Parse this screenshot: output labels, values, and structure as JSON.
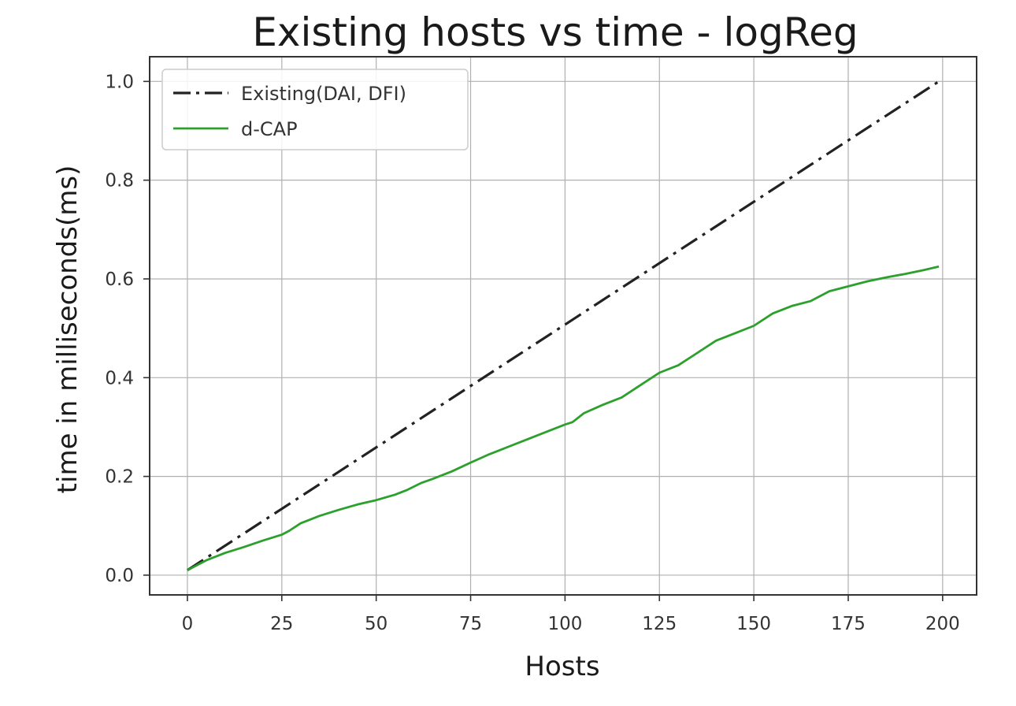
{
  "chart_data": {
    "type": "line",
    "title": "Existing hosts vs time - logReg",
    "xlabel": "Hosts",
    "ylabel": "time in milliseconds(ms)",
    "xlim": [
      -10,
      209
    ],
    "ylim": [
      -0.04,
      1.05
    ],
    "xticks": [
      0,
      25,
      50,
      75,
      100,
      125,
      150,
      175,
      200
    ],
    "yticks": [
      0.0,
      0.2,
      0.4,
      0.6,
      0.8,
      1.0
    ],
    "ytick_labels": [
      "0.0",
      "0.2",
      "0.4",
      "0.6",
      "0.8",
      "1.0"
    ],
    "grid": true,
    "legend_position": "top-left",
    "series": [
      {
        "name": "Existing(DAI, DFI)",
        "color": "#222222",
        "linestyle": "dash-dot",
        "x": [
          0,
          199
        ],
        "y": [
          0.01,
          1.0
        ]
      },
      {
        "name": "d-CAP",
        "color": "#2ca02c",
        "linestyle": "solid",
        "x": [
          0,
          5,
          10,
          15,
          20,
          25,
          27,
          30,
          35,
          40,
          45,
          50,
          55,
          58,
          62,
          65,
          70,
          75,
          80,
          85,
          90,
          95,
          100,
          102,
          105,
          110,
          115,
          120,
          125,
          130,
          135,
          140,
          145,
          150,
          155,
          160,
          165,
          170,
          175,
          180,
          185,
          190,
          195,
          199
        ],
        "y": [
          0.01,
          0.03,
          0.045,
          0.057,
          0.07,
          0.082,
          0.09,
          0.105,
          0.12,
          0.132,
          0.143,
          0.152,
          0.163,
          0.172,
          0.187,
          0.195,
          0.21,
          0.228,
          0.245,
          0.26,
          0.275,
          0.29,
          0.305,
          0.31,
          0.328,
          0.345,
          0.36,
          0.385,
          0.41,
          0.425,
          0.45,
          0.475,
          0.49,
          0.505,
          0.53,
          0.545,
          0.555,
          0.575,
          0.585,
          0.595,
          0.603,
          0.61,
          0.618,
          0.625
        ]
      }
    ]
  }
}
